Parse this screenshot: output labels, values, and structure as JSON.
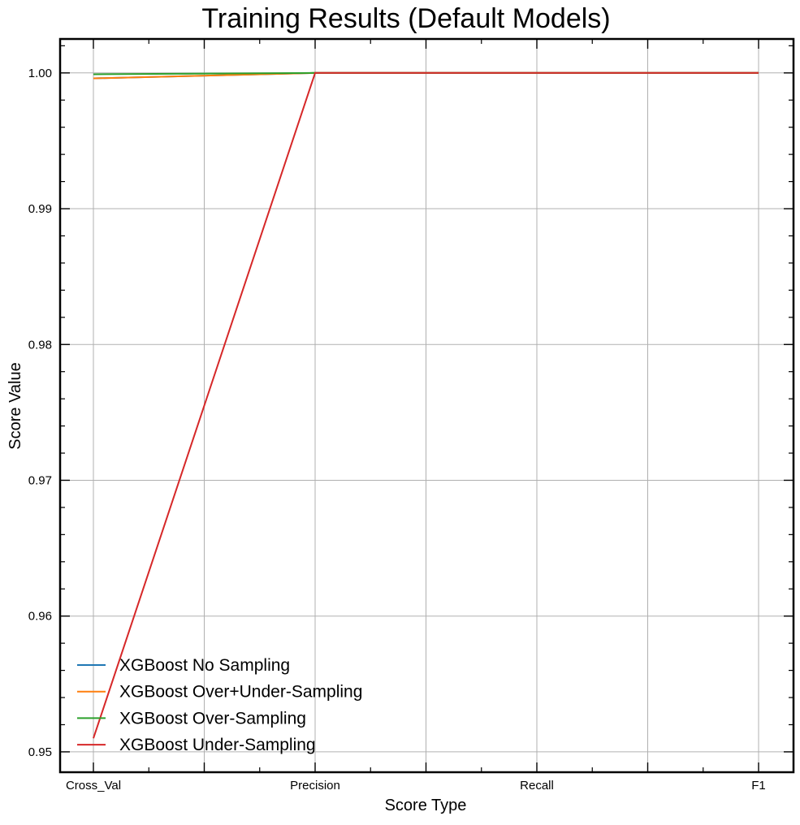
{
  "chart_data": {
    "type": "line",
    "title": "Training Results (Default Models)",
    "xlabel": "Score Type",
    "ylabel": "Score Value",
    "categories": [
      "Cross_Val",
      "Precision",
      "Recall",
      "F1"
    ],
    "ylim": [
      0.9485,
      1.0025
    ],
    "yticks": [
      0.95,
      0.96,
      0.97,
      0.98,
      0.99,
      1.0
    ],
    "ytick_labels": [
      "0.95",
      "0.96",
      "0.97",
      "0.98",
      "0.99",
      "1.00"
    ],
    "grid": true,
    "legend_position": "lower-left",
    "series": [
      {
        "name": "XGBoost No Sampling",
        "color": "#1f77b4",
        "values": [
          0.9996,
          1.0,
          1.0,
          1.0
        ]
      },
      {
        "name": "XGBoost Over+Under-Sampling",
        "color": "#ff7f0e",
        "values": [
          0.9996,
          1.0,
          1.0,
          1.0
        ]
      },
      {
        "name": "XGBoost Over-Sampling",
        "color": "#2ca02c",
        "values": [
          0.9999,
          1.0,
          1.0,
          1.0
        ]
      },
      {
        "name": "XGBoost Under-Sampling",
        "color": "#d62728",
        "values": [
          0.951,
          1.0,
          1.0,
          1.0
        ]
      }
    ]
  }
}
